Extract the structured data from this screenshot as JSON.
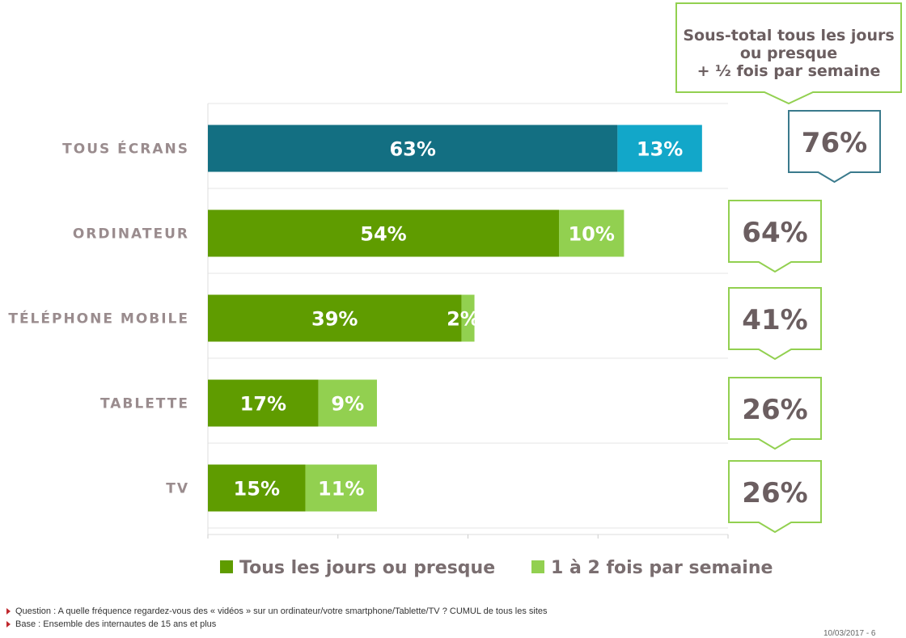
{
  "chart_data": {
    "type": "bar",
    "orientation": "horizontal",
    "stacked": true,
    "categories": [
      "TOUS ÉCRANS",
      "ORDINATEUR",
      "TÉLÉPHONE MOBILE",
      "TABLETTE",
      "TV"
    ],
    "series": [
      {
        "name": "Tous les jours ou presque",
        "values": [
          63,
          54,
          39,
          17,
          15
        ],
        "labels": [
          "63%",
          "54%",
          "39%",
          "17%",
          "15%"
        ]
      },
      {
        "name": "1 à 2 fois par semaine",
        "values": [
          13,
          10,
          2,
          9,
          11
        ],
        "labels": [
          "13%",
          "10%",
          "2%",
          "9%",
          "11%"
        ]
      }
    ],
    "subtotals": {
      "values": [
        76,
        64,
        41,
        26,
        26
      ],
      "labels": [
        "76%",
        "64%",
        "41%",
        "26%",
        "26%"
      ]
    },
    "subtotal_header": [
      "Sous-total tous les jours",
      "ou presque",
      "+ ½ fois par semaine"
    ],
    "xlim": [
      0,
      80
    ],
    "grid": true,
    "legend_position": "bottom",
    "colors": {
      "tous_ecrans_primary": "#136f82",
      "tous_ecrans_secondary": "#12a7c9",
      "primary": "#5f9c00",
      "secondary": "#92d050",
      "callout_border_total": "#3a7a8c",
      "callout_border": "#92d050"
    }
  },
  "footnotes": [
    "Question : A quelle fréquence regardez-vous des « vidéos » sur un ordinateur/votre smartphone/Tablette/TV ? CUMUL de tous les sites",
    "Base : Ensemble des internautes de 15 ans et plus"
  ],
  "page_meta": "10/03/2017 - 6"
}
